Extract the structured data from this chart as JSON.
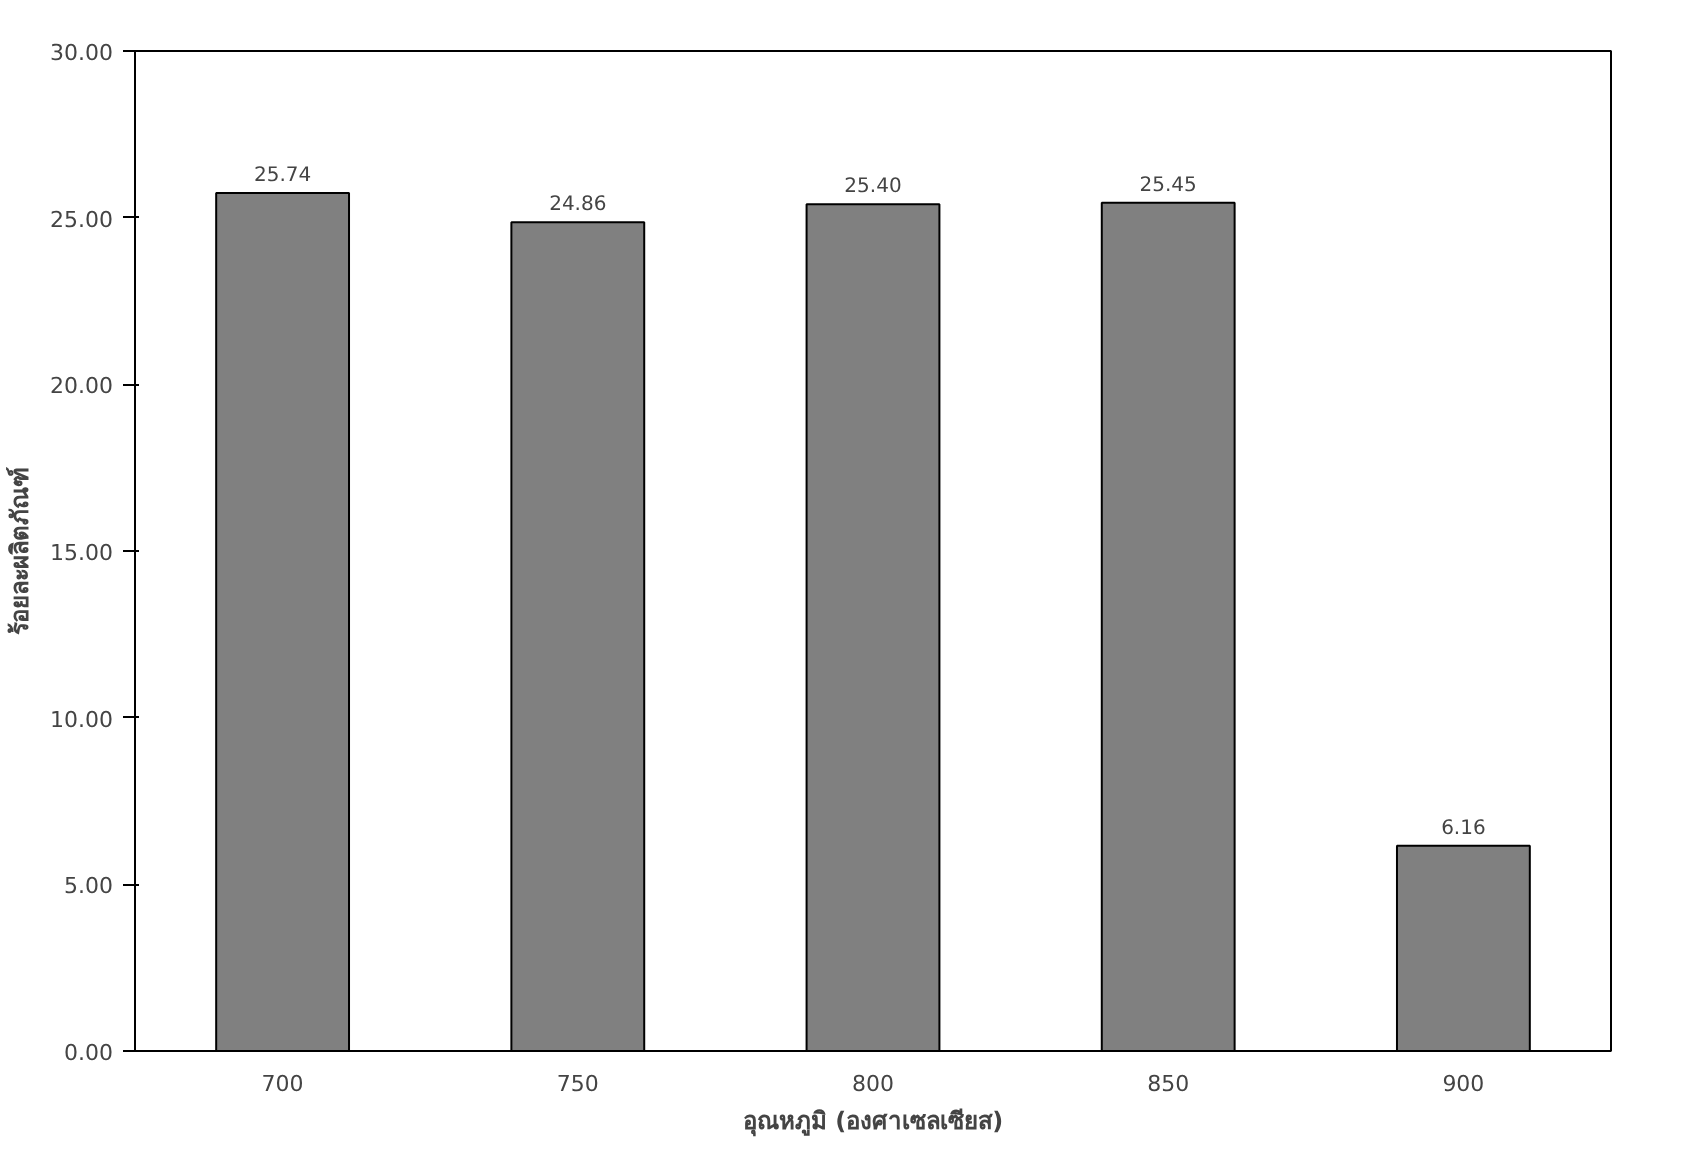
{
  "chart_data": {
    "type": "bar",
    "xlabel": "อุณหภูมิ (องศาเซลเซียส)",
    "ylabel": "ร้อยละผลิตภัณฑ์",
    "categories": [
      "700",
      "750",
      "800",
      "850",
      "900"
    ],
    "values": [
      25.74,
      24.86,
      25.4,
      25.45,
      6.16
    ],
    "color": "#808080",
    "value_labels": [
      "25.74",
      "24.86",
      "25.40",
      "25.45",
      "6.16"
    ],
    "ylim": [
      0,
      30
    ],
    "yticks": [
      {
        "value": 0,
        "label": "0.00"
      },
      {
        "value": 5,
        "label": "5.00"
      },
      {
        "value": 10,
        "label": "10.00"
      },
      {
        "value": 15,
        "label": "15.00"
      },
      {
        "value": 20,
        "label": "20.00"
      },
      {
        "value": 25,
        "label": "25.00"
      },
      {
        "value": 30,
        "label": "30.00"
      }
    ],
    "grid": false
  }
}
